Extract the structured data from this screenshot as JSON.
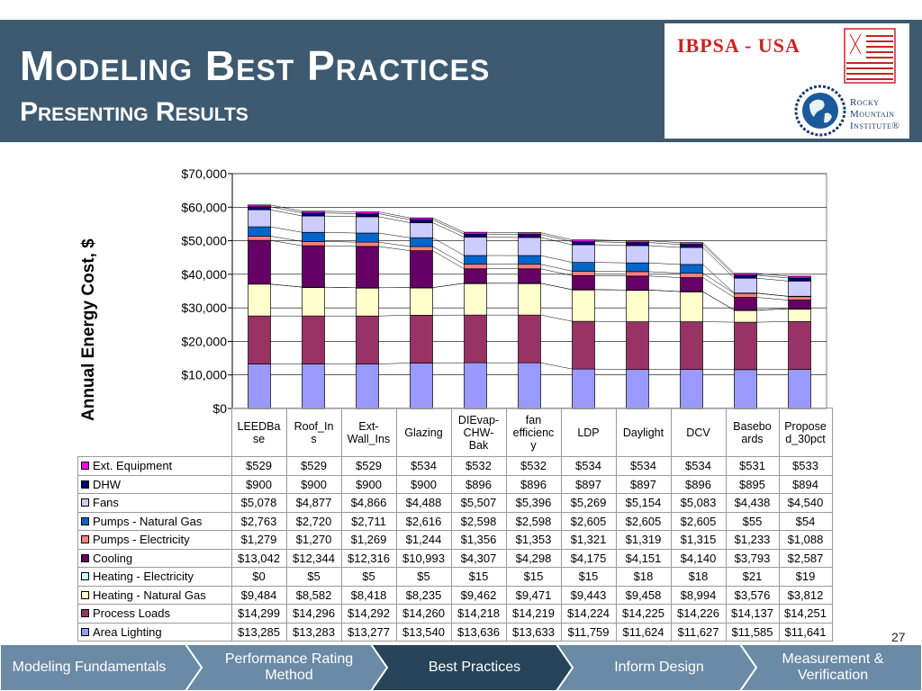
{
  "header": {
    "title": "Modeling Best Practices",
    "subtitle": "Presenting Results",
    "logo_ibpsa": "IBPSA - USA",
    "logo_rmi_lines": [
      "Rocky",
      "Mountain",
      "Institute®"
    ]
  },
  "page_number": "27",
  "nav": {
    "items": [
      {
        "label": "Modeling Fundamentals",
        "active": false
      },
      {
        "label": "Performance Rating Method",
        "active": false
      },
      {
        "label": "Best Practices",
        "active": true
      },
      {
        "label": "Inform Design",
        "active": false
      },
      {
        "label": "Measurement & Verification",
        "active": false
      }
    ]
  },
  "chart_data": {
    "type": "bar",
    "stacked": true,
    "ylabel": "Annual Energy Cost, $",
    "ylim": [
      0,
      70000
    ],
    "yticks": [
      "$0",
      "$10,000",
      "$20,000",
      "$30,000",
      "$40,000",
      "$50,000",
      "$60,000",
      "$70,000"
    ],
    "grid": true,
    "legend_placement": "data table below chart",
    "categories": [
      "LEEDBase",
      "Roof_Ins",
      "Ext-Wall_Ins",
      "Glazing",
      "DIEvap-CHW-Bak",
      "fan efficiency",
      "LDP",
      "Daylight",
      "DCV",
      "Baseboards",
      "Proposed_30pct"
    ],
    "category_labels": [
      [
        "LEEDBa",
        "se"
      ],
      [
        "Roof_In",
        "s"
      ],
      [
        "Ext-",
        "Wall_Ins"
      ],
      [
        "Glazing"
      ],
      [
        "DIEvap-",
        "CHW-",
        "Bak"
      ],
      [
        "fan",
        "efficienc",
        "y"
      ],
      [
        "LDP"
      ],
      [
        "Daylight"
      ],
      [
        "DCV"
      ],
      [
        "Basebo",
        "ards"
      ],
      [
        "Propose",
        "d_30pct"
      ]
    ],
    "series": [
      {
        "name": "Area Lighting",
        "color": "#9999ff",
        "values": [
          13285,
          13283,
          13277,
          13540,
          13636,
          13633,
          11759,
          11624,
          11627,
          11585,
          11641
        ],
        "labels": [
          "$13,285",
          "$13,283",
          "$13,277",
          "$13,540",
          "$13,636",
          "$13,633",
          "$11,759",
          "$11,624",
          "$11,627",
          "$11,585",
          "$11,641"
        ]
      },
      {
        "name": "Process Loads",
        "color": "#993366",
        "values": [
          14299,
          14296,
          14292,
          14260,
          14218,
          14219,
          14224,
          14225,
          14226,
          14137,
          14251
        ],
        "labels": [
          "$14,299",
          "$14,296",
          "$14,292",
          "$14,260",
          "$14,218",
          "$14,219",
          "$14,224",
          "$14,225",
          "$14,226",
          "$14,137",
          "$14,251"
        ]
      },
      {
        "name": "Heating - Natural Gas",
        "color": "#ffffcc",
        "values": [
          9484,
          8582,
          8418,
          8235,
          9462,
          9471,
          9443,
          9458,
          8994,
          3576,
          3812
        ],
        "labels": [
          "$9,484",
          "$8,582",
          "$8,418",
          "$8,235",
          "$9,462",
          "$9,471",
          "$9,443",
          "$9,458",
          "$8,994",
          "$3,576",
          "$3,812"
        ]
      },
      {
        "name": "Heating - Electricity",
        "color": "#ccffff",
        "values": [
          0,
          5,
          5,
          5,
          15,
          15,
          15,
          18,
          18,
          21,
          19
        ],
        "labels": [
          "$0",
          "$5",
          "$5",
          "$5",
          "$15",
          "$15",
          "$15",
          "$18",
          "$18",
          "$21",
          "$19"
        ]
      },
      {
        "name": "Cooling",
        "color": "#660066",
        "values": [
          13042,
          12344,
          12316,
          10993,
          4307,
          4298,
          4175,
          4151,
          4140,
          3793,
          2587
        ],
        "labels": [
          "$13,042",
          "$12,344",
          "$12,316",
          "$10,993",
          "$4,307",
          "$4,298",
          "$4,175",
          "$4,151",
          "$4,140",
          "$3,793",
          "$2,587"
        ]
      },
      {
        "name": "Pumps - Electricity",
        "color": "#ff8080",
        "values": [
          1279,
          1270,
          1269,
          1244,
          1356,
          1353,
          1321,
          1319,
          1315,
          1233,
          1088
        ],
        "labels": [
          "$1,279",
          "$1,270",
          "$1,269",
          "$1,244",
          "$1,356",
          "$1,353",
          "$1,321",
          "$1,319",
          "$1,315",
          "$1,233",
          "$1,088"
        ]
      },
      {
        "name": "Pumps - Natural Gas",
        "color": "#0066cc",
        "values": [
          2763,
          2720,
          2711,
          2616,
          2598,
          2598,
          2605,
          2605,
          2605,
          55,
          54
        ],
        "labels": [
          "$2,763",
          "$2,720",
          "$2,711",
          "$2,616",
          "$2,598",
          "$2,598",
          "$2,605",
          "$2,605",
          "$2,605",
          "$55",
          "$54"
        ]
      },
      {
        "name": "Fans",
        "color": "#ccccff",
        "values": [
          5078,
          4877,
          4866,
          4488,
          5507,
          5396,
          5269,
          5154,
          5083,
          4438,
          4540
        ],
        "labels": [
          "$5,078",
          "$4,877",
          "$4,866",
          "$4,488",
          "$5,507",
          "$5,396",
          "$5,269",
          "$5,154",
          "$5,083",
          "$4,438",
          "$4,540"
        ]
      },
      {
        "name": "DHW",
        "color": "#000080",
        "values": [
          900,
          900,
          900,
          900,
          896,
          896,
          897,
          897,
          896,
          895,
          894
        ],
        "labels": [
          "$900",
          "$900",
          "$900",
          "$900",
          "$896",
          "$896",
          "$897",
          "$897",
          "$896",
          "$895",
          "$894"
        ]
      },
      {
        "name": "Ext. Equipment",
        "color": "#ff00ff",
        "values": [
          529,
          529,
          529,
          534,
          532,
          532,
          534,
          534,
          534,
          531,
          533
        ],
        "labels": [
          "$529",
          "$529",
          "$529",
          "$534",
          "$532",
          "$532",
          "$534",
          "$534",
          "$534",
          "$531",
          "$533"
        ]
      }
    ]
  }
}
